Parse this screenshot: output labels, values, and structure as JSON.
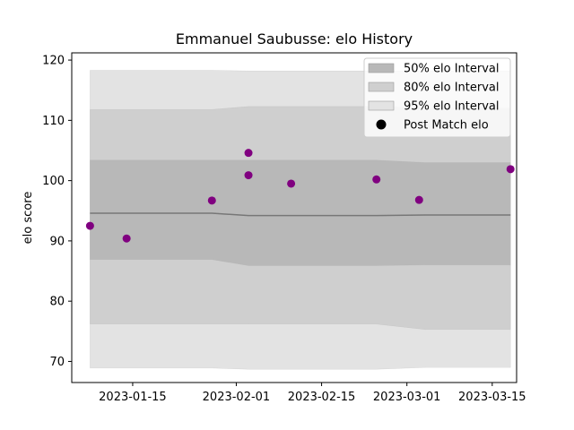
{
  "chart_data": {
    "type": "scatter",
    "title": "Emmanuel Saubusse: elo History",
    "xlabel": "",
    "ylabel": "elo score",
    "xlim": [
      "2023-01-05",
      "2023-03-19"
    ],
    "ylim": [
      66.5,
      121.2
    ],
    "yticks": [
      70,
      80,
      90,
      100,
      110,
      120
    ],
    "xticks": [
      {
        "date": "2023-01-15",
        "label": "2023-01-15"
      },
      {
        "date": "2023-02-01",
        "label": "2023-02-01"
      },
      {
        "date": "2023-02-15",
        "label": "2023-02-15"
      },
      {
        "date": "2023-03-01",
        "label": "2023-03-01"
      },
      {
        "date": "2023-03-15",
        "label": "2023-03-15"
      }
    ],
    "grid": false,
    "legend_position": "top-right",
    "bands": [
      {
        "name": "95% elo Interval",
        "color": "#e3e3e3",
        "x": [
          "2023-01-08",
          "2023-01-28",
          "2023-02-03",
          "2023-02-24",
          "2023-03-04",
          "2023-03-18"
        ],
        "lower": [
          68.9,
          68.9,
          68.7,
          68.7,
          69.0,
          69.0
        ],
        "upper": [
          118.3,
          118.3,
          118.2,
          118.2,
          118.2,
          118.2
        ]
      },
      {
        "name": "80% elo Interval",
        "color": "#cfcfcf",
        "x": [
          "2023-01-08",
          "2023-01-28",
          "2023-02-03",
          "2023-02-24",
          "2023-03-04",
          "2023-03-18"
        ],
        "lower": [
          76.2,
          76.2,
          76.2,
          76.2,
          75.3,
          75.3
        ],
        "upper": [
          111.8,
          111.8,
          112.3,
          112.3,
          112.0,
          112.0
        ]
      },
      {
        "name": "50% elo Interval",
        "color": "#b8b8b8",
        "x": [
          "2023-01-08",
          "2023-01-28",
          "2023-02-03",
          "2023-02-24",
          "2023-03-04",
          "2023-03-18"
        ],
        "lower": [
          86.9,
          86.9,
          85.9,
          85.9,
          86.0,
          86.0
        ],
        "upper": [
          103.4,
          103.4,
          103.4,
          103.4,
          103.0,
          103.0
        ]
      }
    ],
    "mean_line": {
      "color": "#777777",
      "x": [
        "2023-01-08",
        "2023-01-28",
        "2023-02-03",
        "2023-02-24",
        "2023-03-04",
        "2023-03-18"
      ],
      "y": [
        94.6,
        94.6,
        94.2,
        94.2,
        94.3,
        94.3
      ]
    },
    "series": [
      {
        "name": "Post Match elo",
        "color": "#800080",
        "points": [
          {
            "x": "2023-01-08",
            "y": 92.5
          },
          {
            "x": "2023-01-14",
            "y": 90.4
          },
          {
            "x": "2023-01-28",
            "y": 96.7
          },
          {
            "x": "2023-02-03",
            "y": 104.6
          },
          {
            "x": "2023-02-03",
            "y": 100.9
          },
          {
            "x": "2023-02-10",
            "y": 99.5
          },
          {
            "x": "2023-02-24",
            "y": 100.2
          },
          {
            "x": "2023-03-03",
            "y": 96.8
          },
          {
            "x": "2023-03-18",
            "y": 101.9
          }
        ]
      }
    ],
    "legend": [
      {
        "label": "50% elo Interval",
        "kind": "patch",
        "color": "#b8b8b8"
      },
      {
        "label": "80% elo Interval",
        "kind": "patch",
        "color": "#cfcfcf"
      },
      {
        "label": "95% elo Interval",
        "kind": "patch",
        "color": "#e3e3e3"
      },
      {
        "label": "Post Match elo",
        "kind": "marker",
        "color": "#000000"
      }
    ]
  }
}
